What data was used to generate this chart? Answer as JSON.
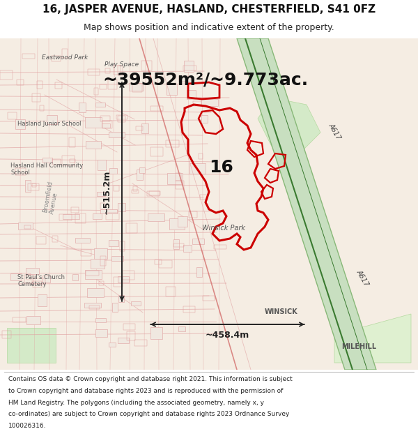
{
  "title_line1": "16, JASPER AVENUE, HASLAND, CHESTERFIELD, S41 0FZ",
  "title_line2": "Map shows position and indicative extent of the property.",
  "area_text": "~39552m²/~9.773ac.",
  "height_text": "~515.2m",
  "width_text": "~458.4m",
  "label_16": "16",
  "footer_lines": [
    "Contains OS data © Crown copyright and database right 2021. This information is subject",
    "to Crown copyright and database rights 2023 and is reproduced with the permission of",
    "HM Land Registry. The polygons (including the associated geometry, namely x, y",
    "co-ordinates) are subject to Crown copyright and database rights 2023 Ordnance Survey",
    "100026316."
  ],
  "bg_color": "#f5f0eb",
  "map_bg": "#f9f5f0",
  "title_bg": "#ffffff",
  "footer_bg": "#ffffff",
  "fig_width": 6.0,
  "fig_height": 6.25,
  "dpi": 100,
  "road_color": "#cc3333",
  "road_color_light": "#e8a0a0",
  "annotation_color": "#222222",
  "boundary_color": "#cc0000",
  "boundary_lw": 2.0
}
